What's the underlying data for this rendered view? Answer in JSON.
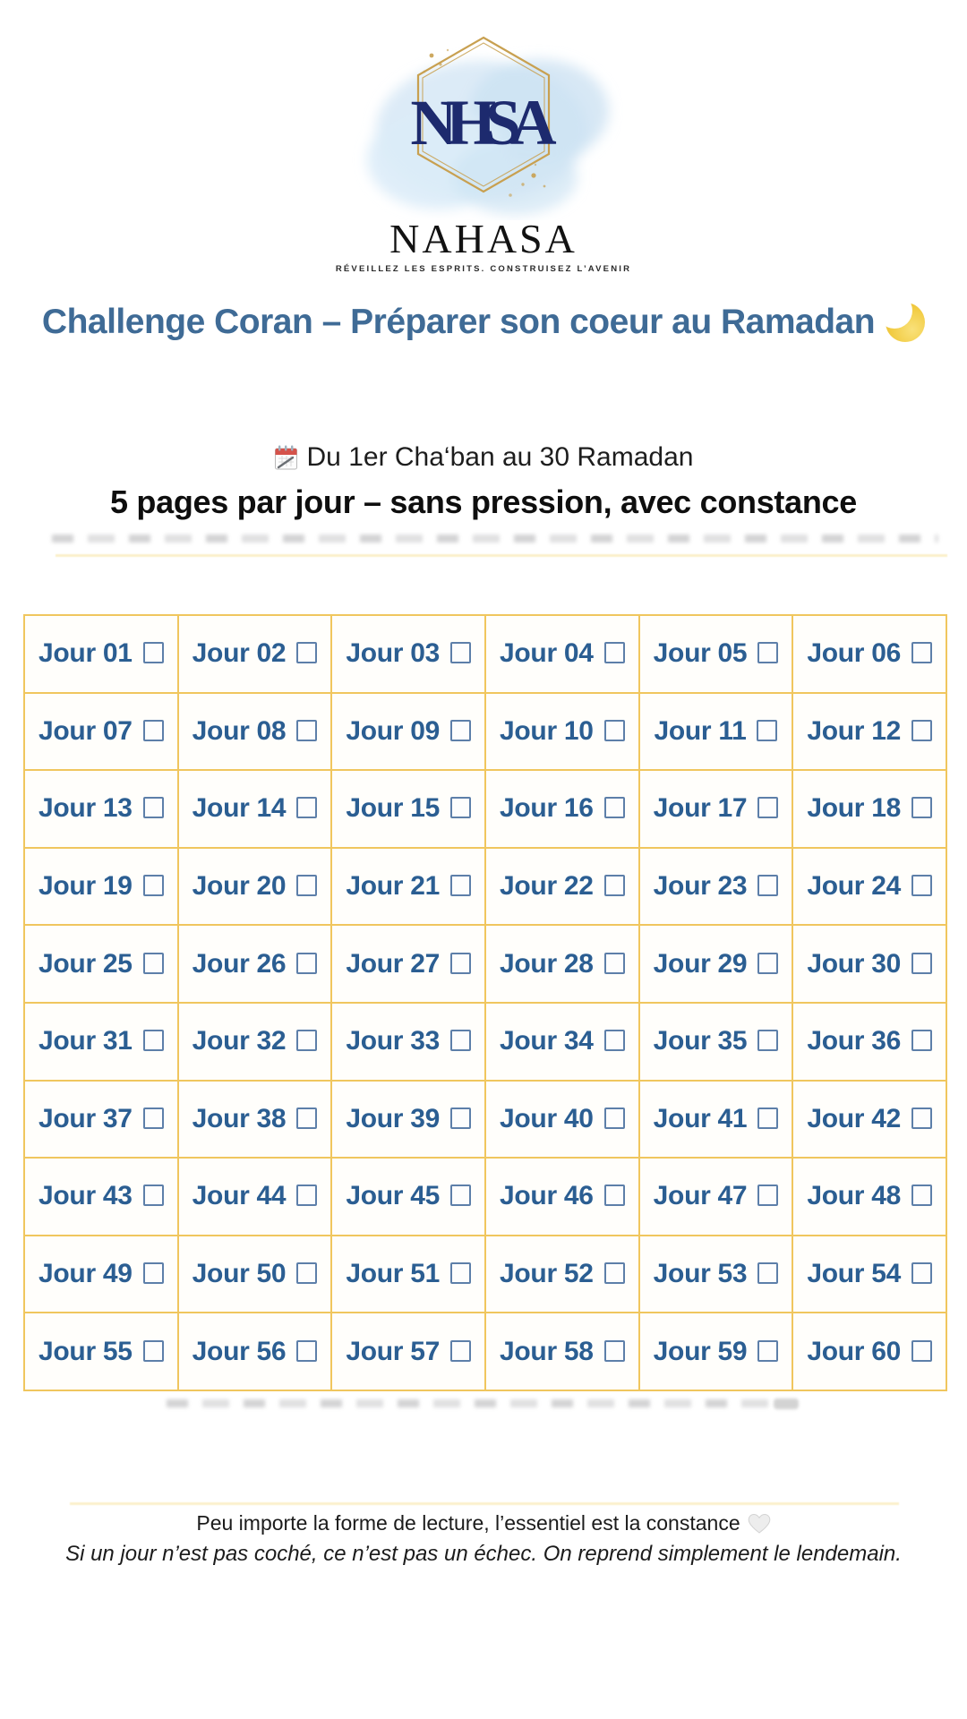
{
  "logo": {
    "monogram": "NHSA",
    "wordmark": "NAHASA",
    "tagline": "RÉVEILLEZ LES ESPRITS. CONSTRUISEZ L’AVENIR",
    "colors": {
      "monogram_navy": "#1d2a6e",
      "hexagon_gold": "#c8a050",
      "watercolor_blue": "#d6e8f6"
    }
  },
  "title": {
    "text": "Challenge Coran – Préparer son coeur au Ramadan",
    "icon": "crescent-moon-icon",
    "color": "#3f6b96"
  },
  "schedule": {
    "icon": "calendar-icon",
    "text": "Du 1er Cha‘ban au 30 Ramadan"
  },
  "headline": {
    "text": "5 pages par jour – sans pression, avec constance"
  },
  "grid": {
    "columns": 6,
    "rows": 10,
    "border_color": "#f0c65e",
    "label_color": "#2b5e92",
    "checkbox_state": "unchecked",
    "days": [
      "Jour 01",
      "Jour 02",
      "Jour 03",
      "Jour 04",
      "Jour 05",
      "Jour 06",
      "Jour 07",
      "Jour 08",
      "Jour 09",
      "Jour 10",
      "Jour 11",
      "Jour 12",
      "Jour 13",
      "Jour 14",
      "Jour 15",
      "Jour 16",
      "Jour 17",
      "Jour 18",
      "Jour 19",
      "Jour 20",
      "Jour 21",
      "Jour 22",
      "Jour 23",
      "Jour 24",
      "Jour 25",
      "Jour 26",
      "Jour 27",
      "Jour 28",
      "Jour 29",
      "Jour 30",
      "Jour 31",
      "Jour 32",
      "Jour 33",
      "Jour 34",
      "Jour 35",
      "Jour 36",
      "Jour 37",
      "Jour 38",
      "Jour 39",
      "Jour 40",
      "Jour 41",
      "Jour 42",
      "Jour 43",
      "Jour 44",
      "Jour 45",
      "Jour 46",
      "Jour 47",
      "Jour 48",
      "Jour 49",
      "Jour 50",
      "Jour 51",
      "Jour 52",
      "Jour 53",
      "Jour 54",
      "Jour 55",
      "Jour 56",
      "Jour 57",
      "Jour 58",
      "Jour 59",
      "Jour 60"
    ]
  },
  "footer": {
    "line1": "Peu importe la forme de lecture, l’essentiel est la constance",
    "heart_icon": "white-heart-icon",
    "line2": "Si un jour n’est pas coché, ce n’est pas un échec. On reprend simplement le lendemain."
  }
}
